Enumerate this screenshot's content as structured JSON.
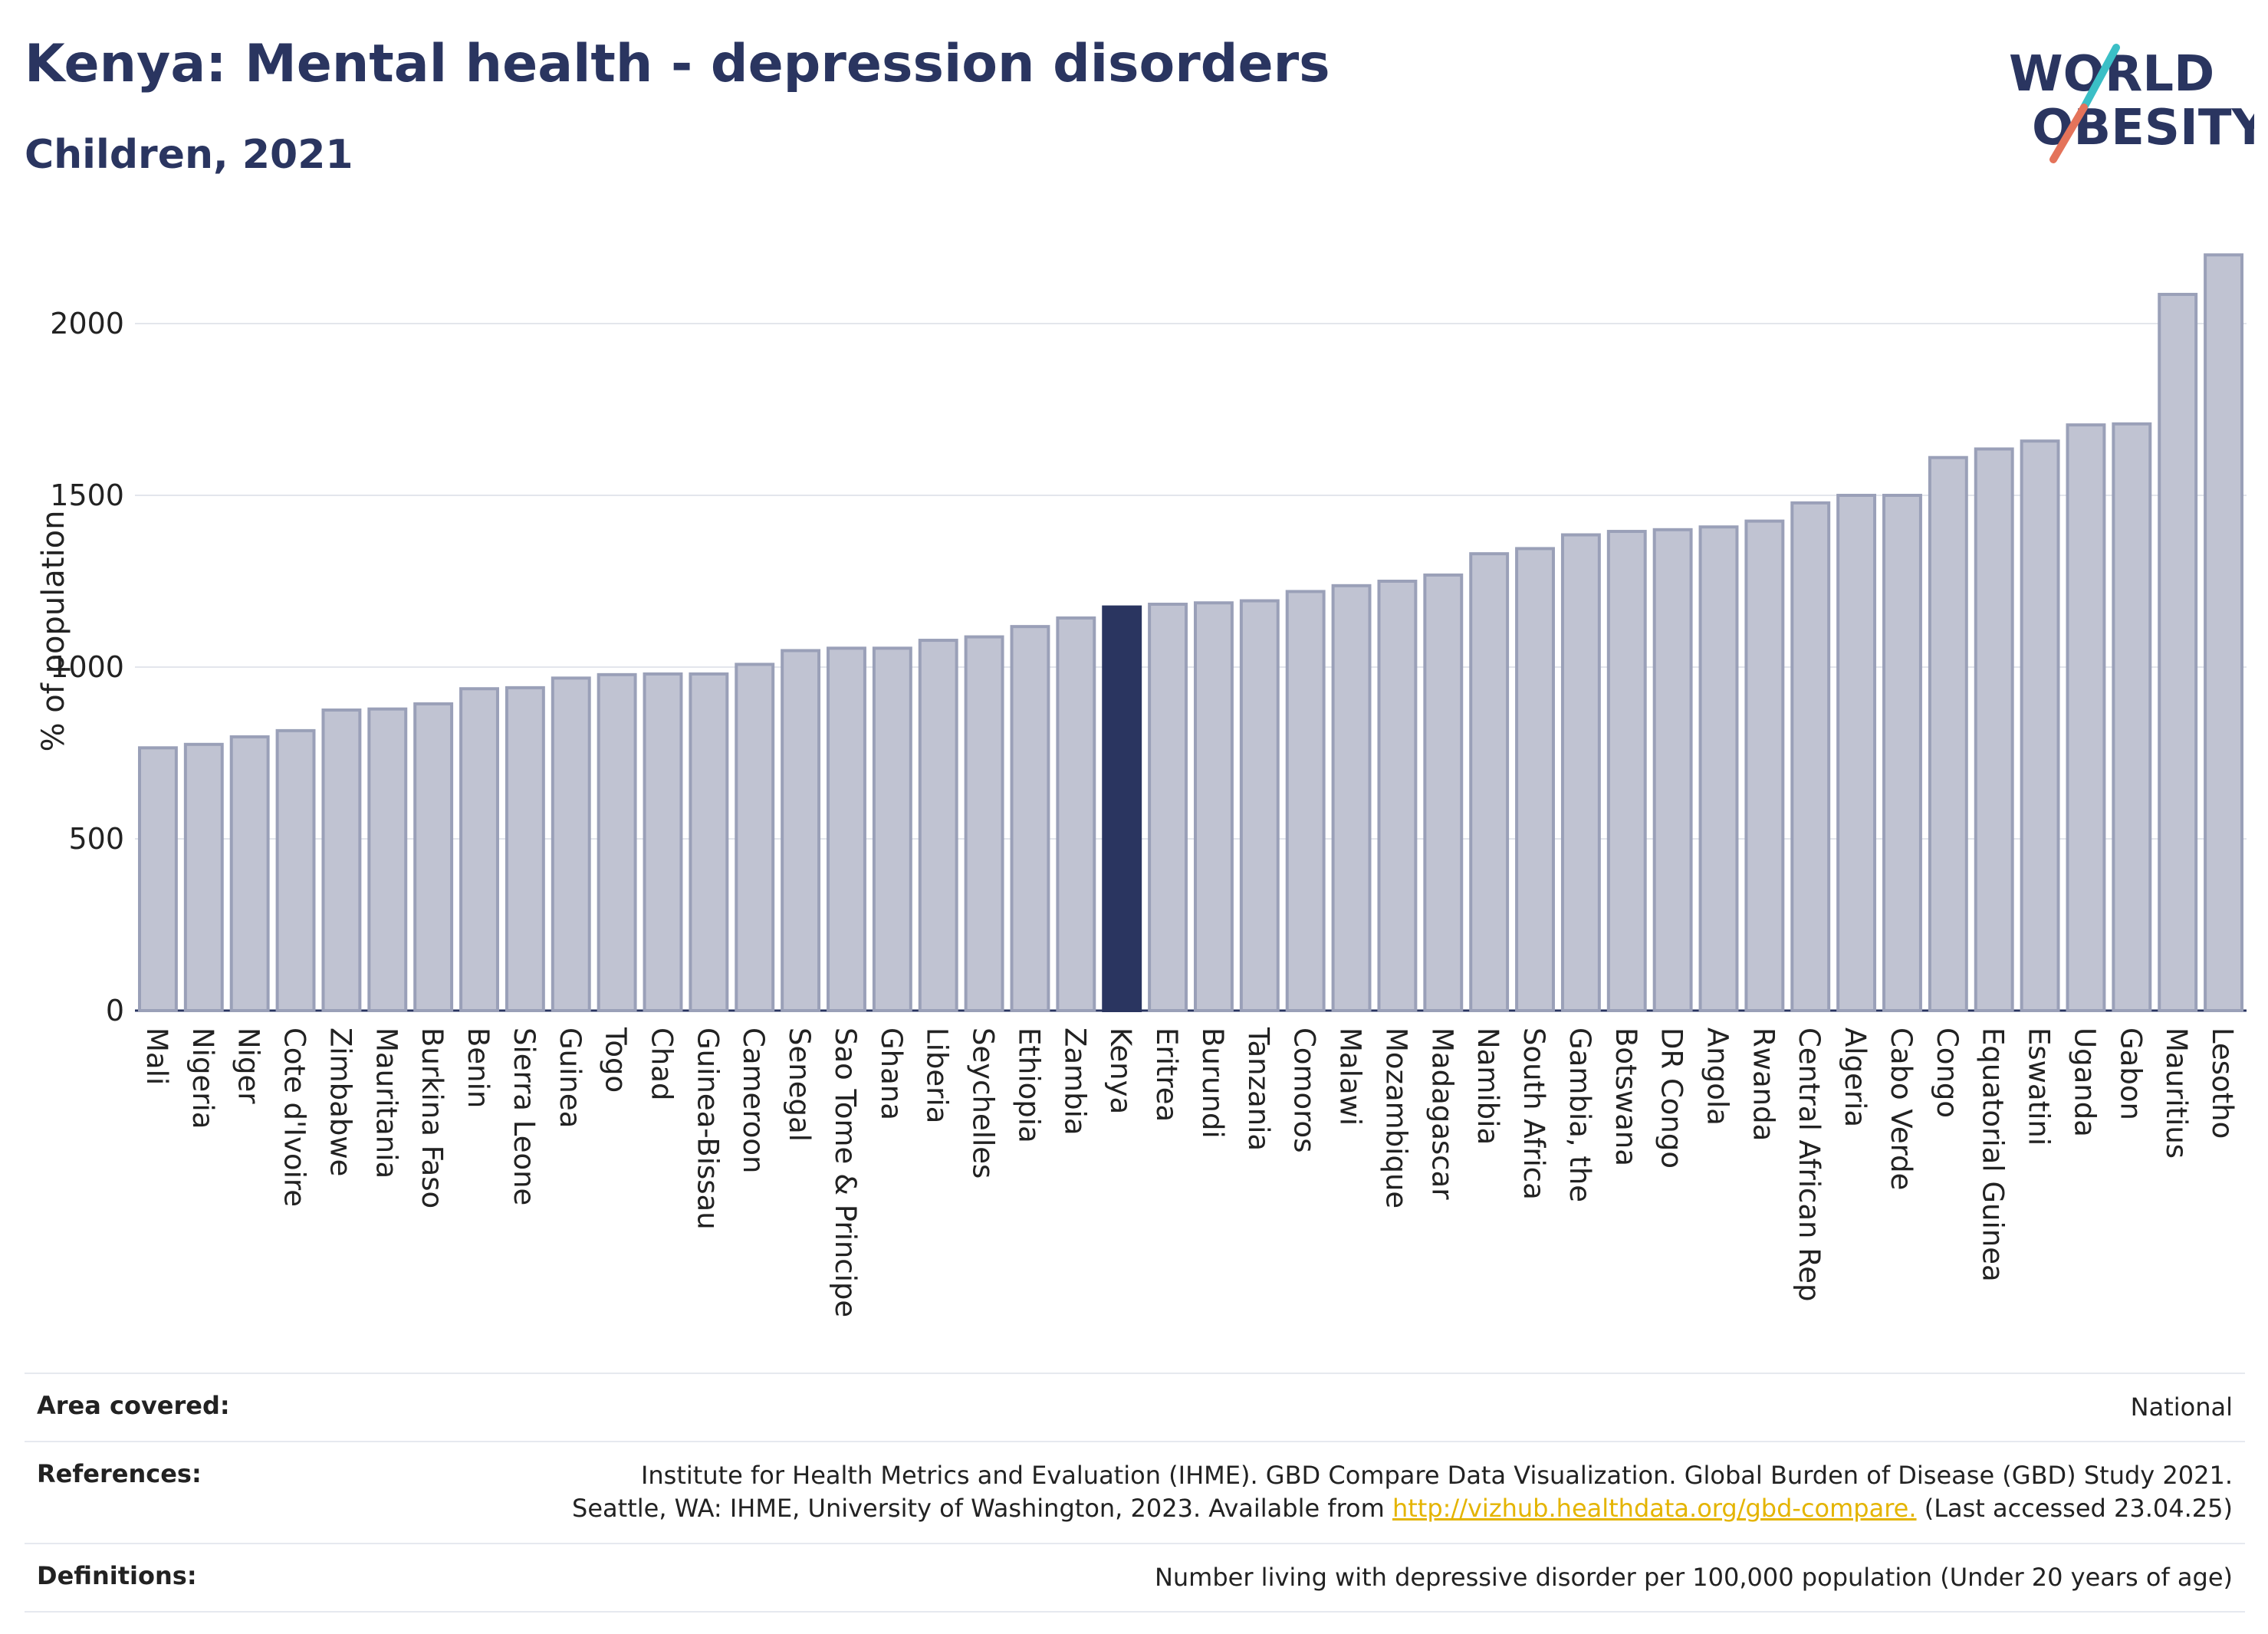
{
  "header": {
    "title": "Kenya: Mental health - depression disorders",
    "subtitle": "Children, 2021"
  },
  "logo": {
    "line1": "WORLD",
    "line2": "OBESITY",
    "slash_color_top": "#3bbfc6",
    "slash_color_bottom": "#e4735a"
  },
  "colors": {
    "bar": "#c0c3d2",
    "bar_stroke": "#9aa0b8",
    "highlight": "#2a3560"
  },
  "chart_data": {
    "type": "bar",
    "ylabel": "% of population",
    "xlabel": "",
    "ylim": [
      0,
      2250
    ],
    "yticks": [
      0,
      500,
      1000,
      1500,
      2000
    ],
    "grid": true,
    "highlight": "Kenya",
    "categories": [
      "Mali",
      "Nigeria",
      "Niger",
      "Cote d'Ivoire",
      "Zimbabwe",
      "Mauritania",
      "Burkina Faso",
      "Benin",
      "Sierra Leone",
      "Guinea",
      "Togo",
      "Chad",
      "Guinea-Bissau",
      "Cameroon",
      "Senegal",
      "Sao Tome & Principe",
      "Ghana",
      "Liberia",
      "Seychelles",
      "Ethiopia",
      "Zambia",
      "Kenya",
      "Eritrea",
      "Burundi",
      "Tanzania",
      "Comoros",
      "Malawi",
      "Mozambique",
      "Madagascar",
      "Namibia",
      "South Africa",
      "Gambia, the",
      "Botswana",
      "DR Congo",
      "Angola",
      "Rwanda",
      "Central African Rep",
      "Algeria",
      "Cabo Verde",
      "Congo",
      "Equatorial Guinea",
      "Eswatini",
      "Uganda",
      "Gabon",
      "Mauritius",
      "Lesotho"
    ],
    "values": [
      765,
      775,
      797,
      815,
      875,
      878,
      893,
      937,
      940,
      968,
      978,
      980,
      980,
      1008,
      1048,
      1055,
      1055,
      1078,
      1088,
      1118,
      1143,
      1175,
      1183,
      1187,
      1193,
      1220,
      1237,
      1250,
      1268,
      1330,
      1345,
      1385,
      1395,
      1400,
      1408,
      1425,
      1478,
      1500,
      1500,
      1610,
      1635,
      1658,
      1705,
      1708,
      2085,
      2200
    ]
  },
  "meta": {
    "area_label": "Area covered:",
    "area_value": "National",
    "references_label": "References:",
    "references_line1": "Institute for Health Metrics and Evaluation (IHME). GBD Compare Data Visualization. Global Burden of Disease (GBD) Study 2021.",
    "references_line2_pre": "Seattle, WA: IHME, University of Washington, 2023. Available from ",
    "references_link": "http://vizhub.healthdata.org/gbd-compare.",
    "references_line2_post": " (Last accessed 23.04.25)",
    "definitions_label": "Definitions:",
    "definitions_value": "Number living with depressive disorder per 100,000 population (Under 20 years of age)"
  }
}
